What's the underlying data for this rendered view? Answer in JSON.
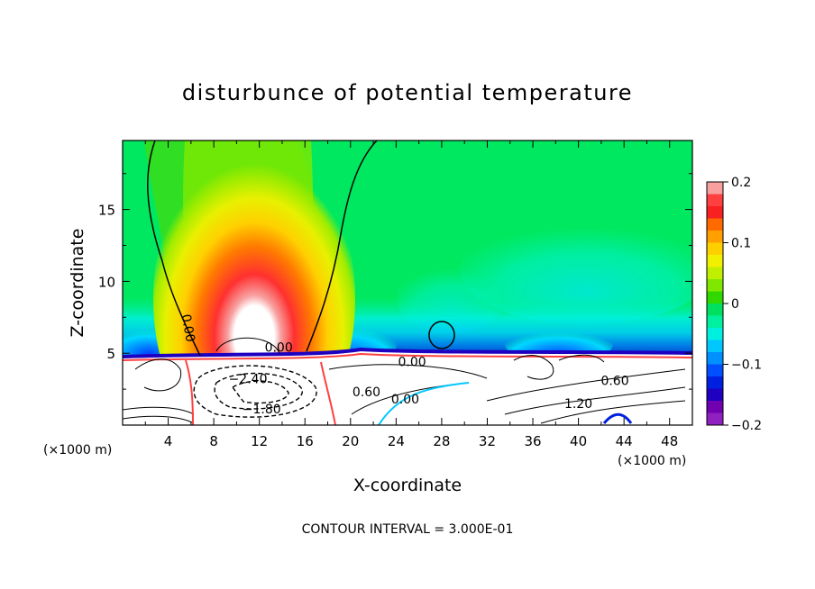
{
  "chart_data": {
    "type": "heatmap",
    "title": "disturbunce of potential temperature",
    "xlabel": "X-coordinate",
    "ylabel": "Z-coordinate",
    "x_unit": "(×1000 m)",
    "y_unit": "(×1000 m)",
    "xlim": [
      0,
      50
    ],
    "ylim": [
      0,
      19.8
    ],
    "x_ticks": [
      4,
      8,
      12,
      16,
      20,
      24,
      28,
      32,
      36,
      40,
      44,
      48
    ],
    "y_ticks": [
      5,
      10,
      15
    ],
    "colorbar": {
      "range": [
        -0.2,
        0.2
      ],
      "tick_labels": [
        "0.2",
        "0.1",
        "0",
        "−0.1",
        "−0.2"
      ],
      "tick_values": [
        0.2,
        0.1,
        0,
        -0.1,
        -0.2
      ],
      "colors": [
        "#f8a0a0",
        "#ff4040",
        "#f82020",
        "#ff6a00",
        "#ffa000",
        "#ffd000",
        "#f0f000",
        "#c0f000",
        "#80e800",
        "#30d800",
        "#00e060",
        "#00f0a0",
        "#00f0e0",
        "#00c8ff",
        "#0090ff",
        "#0050ff",
        "#0020e0",
        "#2000c0",
        "#7000b0",
        "#9020c0"
      ]
    },
    "contour_labels": [
      {
        "text": "0.00",
        "x": 5.4,
        "z": 6.7,
        "rot": 80
      },
      {
        "text": "0.00",
        "x": 13.7,
        "z": 5.1,
        "rot": 0
      },
      {
        "text": "0.00",
        "x": 25.4,
        "z": 4.1,
        "rot": 0
      },
      {
        "text": "−2.40",
        "x": 11.0,
        "z": 2.9,
        "rot": 0
      },
      {
        "text": "−1.80",
        "x": 12.2,
        "z": 0.8,
        "rot": 0
      },
      {
        "text": "0.60",
        "x": 21.4,
        "z": 2.0,
        "rot": 0
      },
      {
        "text": "0.00",
        "x": 24.8,
        "z": 1.5,
        "rot": 0
      },
      {
        "text": "0.60",
        "x": 43.2,
        "z": 2.8,
        "rot": 0
      },
      {
        "text": "1.20",
        "x": 40.0,
        "z": 1.2,
        "rot": 0
      }
    ],
    "footer": "CONTOUR INTERVAL = 3.000E-01"
  }
}
